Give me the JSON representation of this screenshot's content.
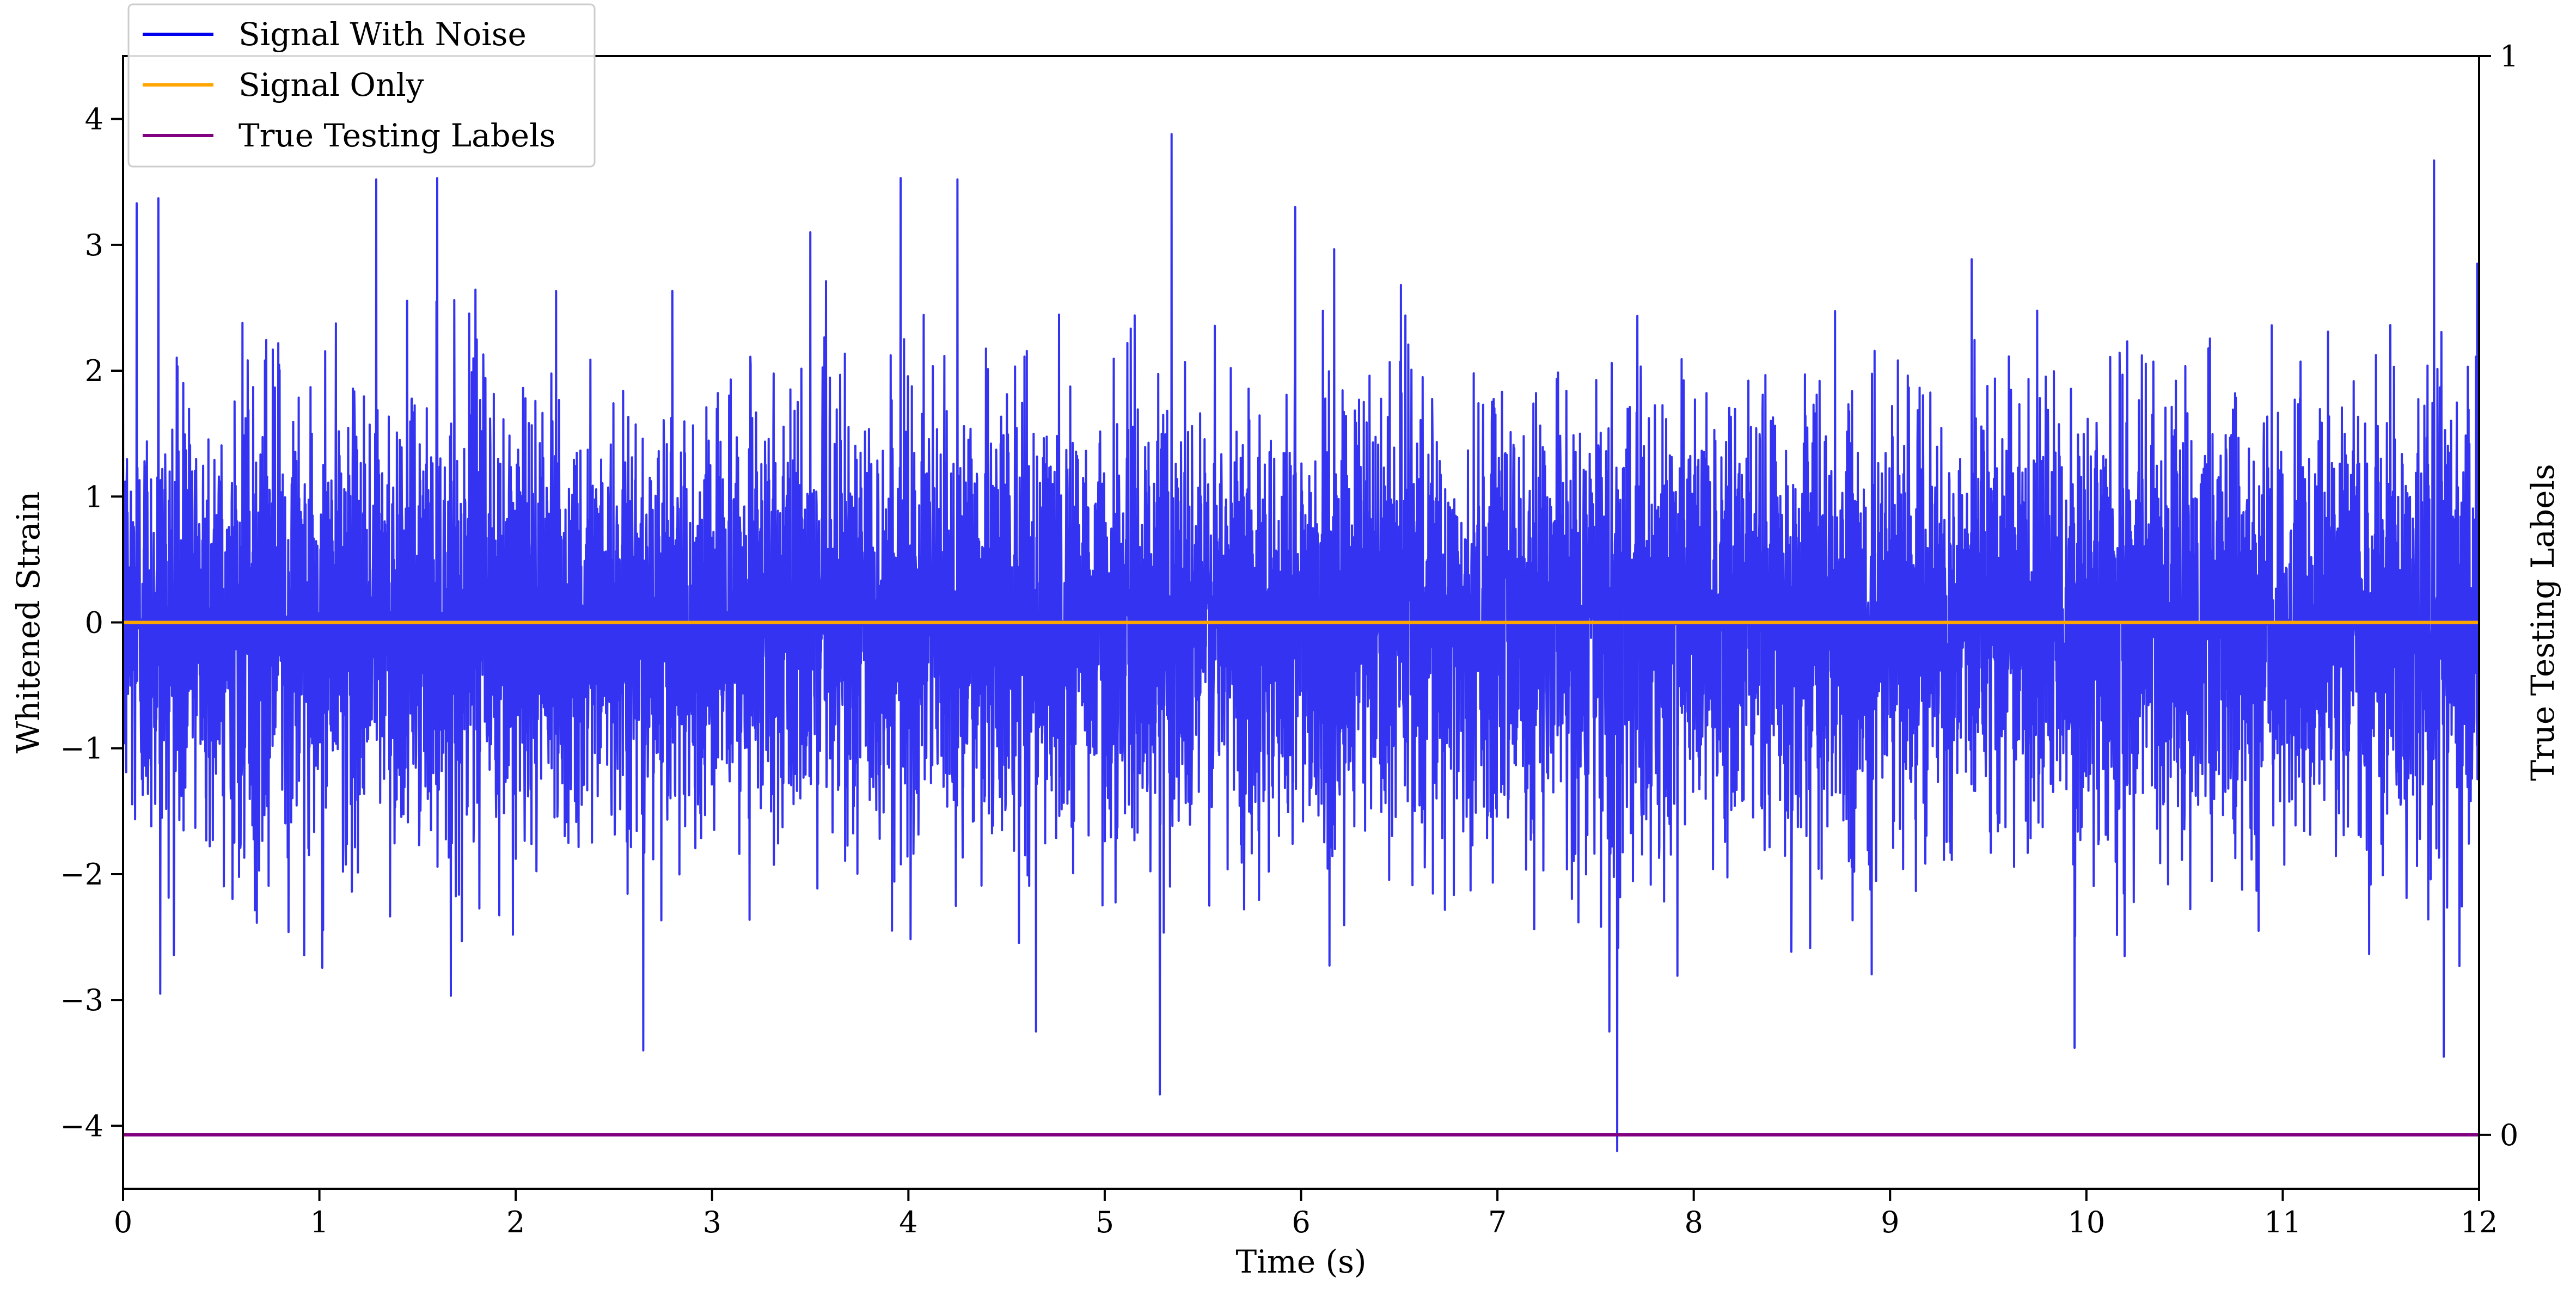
{
  "chart_data": {
    "type": "line",
    "title": "",
    "xlabel": "Time (s)",
    "ylabel": "Whitened Strain",
    "y2label": "True Testing Labels",
    "xlim": [
      0,
      12
    ],
    "ylim": [
      -4.5,
      4.5
    ],
    "y2lim": [
      -0.05,
      1
    ],
    "x_ticks": [
      "0",
      "1",
      "2",
      "3",
      "4",
      "5",
      "6",
      "7",
      "8",
      "9",
      "10",
      "11",
      "12"
    ],
    "y_ticks": [
      "−4",
      "−3",
      "−2",
      "−1",
      "0",
      "1",
      "2",
      "3",
      "4"
    ],
    "y2_ticks": [
      "0",
      "1"
    ],
    "grid": false,
    "legend_position": "top-left",
    "series": [
      {
        "name": "Signal With Noise",
        "axis": "left",
        "color": "#0000ee",
        "description_stats": {
          "mean": 0,
          "std": 0.85,
          "min": -4.2,
          "max": 3.88
        },
        "peaks": [
          {
            "x": 0.07,
            "y": 3.33
          },
          {
            "x": 0.18,
            "y": 3.37
          },
          {
            "x": 0.19,
            "y": -2.95
          },
          {
            "x": 1.29,
            "y": 3.52
          },
          {
            "x": 1.6,
            "y": 3.53
          },
          {
            "x": 2.65,
            "y": -3.4
          },
          {
            "x": 3.5,
            "y": 3.1
          },
          {
            "x": 3.96,
            "y": 3.53
          },
          {
            "x": 4.25,
            "y": 3.52
          },
          {
            "x": 4.65,
            "y": -3.25
          },
          {
            "x": 5.28,
            "y": -3.75
          },
          {
            "x": 5.34,
            "y": 3.88
          },
          {
            "x": 5.97,
            "y": 3.3
          },
          {
            "x": 7.57,
            "y": -3.25
          },
          {
            "x": 7.61,
            "y": -4.2
          },
          {
            "x": 9.94,
            "y": -3.38
          },
          {
            "x": 11.77,
            "y": 3.67
          },
          {
            "x": 11.82,
            "y": -3.45
          },
          {
            "x": 11.99,
            "y": 2.85
          }
        ]
      },
      {
        "name": "Signal Only",
        "axis": "left",
        "color": "#ffa500",
        "x": [
          0,
          12
        ],
        "y": [
          0,
          0
        ]
      },
      {
        "name": "True Testing Labels",
        "axis": "right",
        "color": "#800080",
        "x": [
          0,
          12
        ],
        "y": [
          0,
          0
        ]
      }
    ]
  }
}
